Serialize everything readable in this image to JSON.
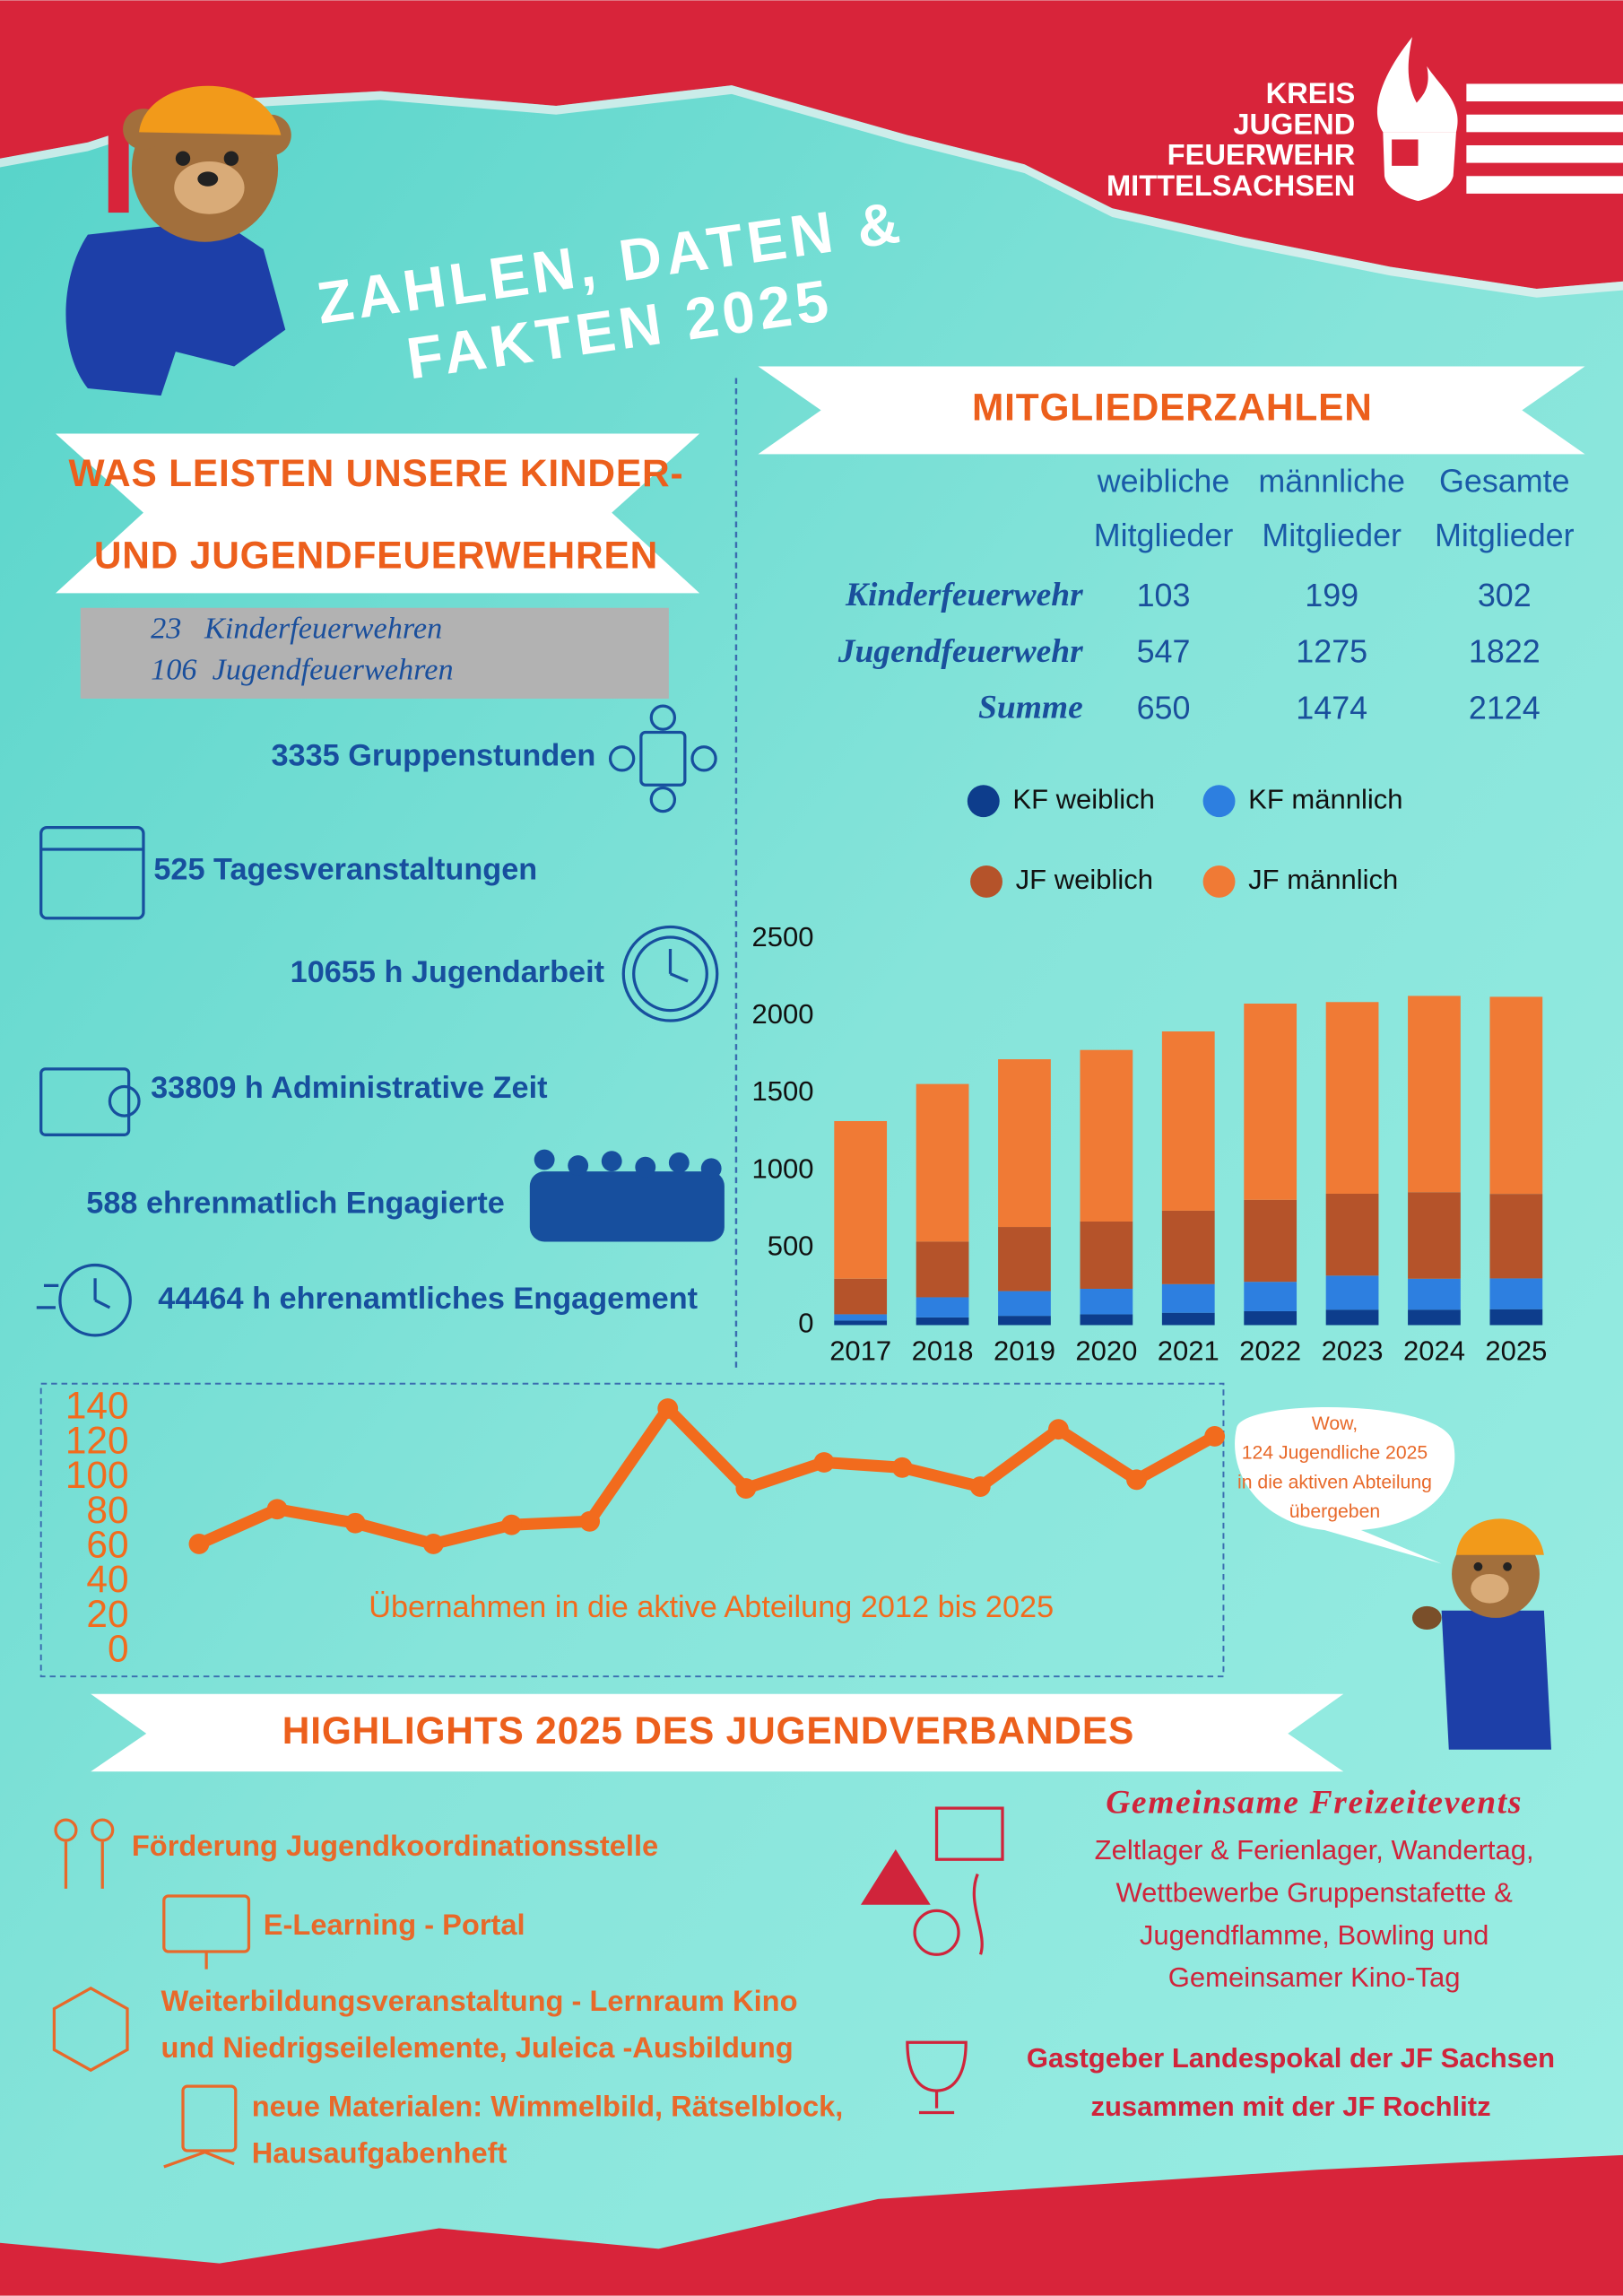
{
  "logo": {
    "lines": [
      "KREIS",
      "JUGEND",
      "FEUERWEHR",
      "MITTELSACHSEN"
    ]
  },
  "title": [
    "ZAHLEN, DATEN &",
    "FAKTEN 2025"
  ],
  "left": {
    "banner": [
      "WAS LEISTEN UNSERE KINDER-",
      "UND JUGENDFEUERWEHREN"
    ],
    "counts": [
      "23   Kinderfeuerwehren",
      "106  Jugendfeuerwehren"
    ],
    "stats": [
      "3335 Gruppenstunden",
      "525 Tagesveranstaltungen",
      "10655 h Jugendarbeit",
      "33809 h Administrative Zeit",
      "588 ehrenmatlich Engagierte",
      "44464 h ehrenamtliches Engagement"
    ]
  },
  "members": {
    "banner": "MITGLIEDERZAHLEN",
    "columns": [
      [
        "weibliche",
        "Mitglieder"
      ],
      [
        "männliche",
        "Mitglieder"
      ],
      [
        "Gesamte",
        "Mitglieder"
      ]
    ],
    "rows": [
      {
        "label": "Kinderfeuerwehr",
        "values": [
          "103",
          "199",
          "302"
        ]
      },
      {
        "label": "Jugendfeuerwehr",
        "values": [
          "547",
          "1275",
          "1822"
        ]
      },
      {
        "label": "Summe",
        "values": [
          "650",
          "1474",
          "2124"
        ]
      }
    ]
  },
  "chart_data": [
    {
      "type": "bar",
      "stacked": true,
      "categories": [
        "2017",
        "2018",
        "2019",
        "2020",
        "2021",
        "2022",
        "2023",
        "2024",
        "2025"
      ],
      "series": [
        {
          "name": "KF weiblich",
          "color": "#0d3d8c",
          "values": [
            30,
            50,
            60,
            70,
            80,
            90,
            100,
            100,
            103
          ]
        },
        {
          "name": "KF männlich",
          "color": "#2d7fe0",
          "values": [
            40,
            130,
            160,
            165,
            185,
            190,
            220,
            200,
            199
          ]
        },
        {
          "name": "JF weiblich",
          "color": "#b5532a",
          "values": [
            230,
            360,
            415,
            435,
            475,
            530,
            530,
            560,
            547
          ]
        },
        {
          "name": "JF männlich",
          "color": "#f07a35",
          "values": [
            1020,
            1020,
            1085,
            1110,
            1160,
            1270,
            1240,
            1270,
            1275
          ]
        }
      ],
      "ylim": [
        0,
        2500
      ],
      "yticks": [
        0,
        500,
        1000,
        1500,
        2000,
        2500
      ]
    },
    {
      "type": "line",
      "annotation": "Übernahmen in die aktive Abteilung 2012 bis 2025",
      "color": "#f26b1d",
      "values": [
        62,
        82,
        74,
        62,
        73,
        75,
        140,
        94,
        109,
        106,
        95,
        128,
        99,
        124
      ],
      "ylim": [
        0,
        140
      ],
      "yticks": [
        0,
        20,
        40,
        60,
        80,
        100,
        120,
        140
      ]
    }
  ],
  "bubble": [
    "Wow,",
    "124 Jugendliche 2025",
    "in die aktiven Abteilung",
    "übergeben"
  ],
  "highlights": {
    "banner": "HIGHLIGHTS 2025 DES JUGENDVERBANDES",
    "left": [
      "Förderung Jugendkoordinationsstelle",
      "E-Learning - Portal",
      "Weiterbildungsveranstaltung - Lernraum Kino",
      "und Niedrigseilelemente, Juleica -Ausbildung",
      "neue Materialen: Wimmelbild, Rätselblock,",
      "Hausaufgabenheft"
    ],
    "events_title": "Gemeinsame Freizeitevents",
    "events": [
      "Zeltlager & Ferienlager, Wandertag,",
      "Wettbewerbe Gruppenstafette &",
      "Jugendflamme, Bowling und",
      "Gemeinsamer Kino-Tag"
    ],
    "cup": [
      "Gastgeber Landespokal der JF Sachsen",
      "zusammen mit der JF Rochlitz"
    ]
  }
}
